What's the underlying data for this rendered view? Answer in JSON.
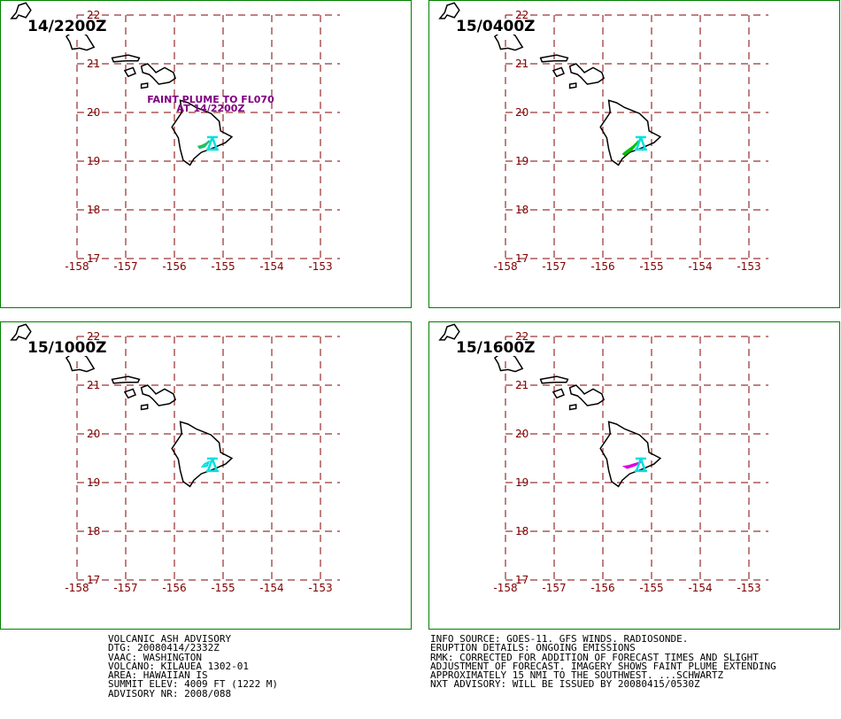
{
  "panels": [
    {
      "time": "14/2200Z",
      "annotation": [
        "FAINT PLUME TO FL070",
        "AT 14/2200Z"
      ],
      "plume": "cyan-green"
    },
    {
      "time": "15/0400Z",
      "annotation": [],
      "plume": "green"
    },
    {
      "time": "15/1000Z",
      "annotation": [],
      "plume": "cyan"
    },
    {
      "time": "15/1600Z",
      "annotation": [],
      "plume": "magenta"
    }
  ],
  "map": {
    "lon_ticks": [
      "-158",
      "-157",
      "-156",
      "-155",
      "-154",
      "-153"
    ],
    "lat_ticks": [
      "22",
      "21",
      "20",
      "19",
      "18",
      "17"
    ],
    "grid_color": "#800000",
    "coast_color": "#000000",
    "border_color": "#008000",
    "annotation_color": "#800080",
    "volcano_marker_color": "#00e0e0",
    "plume_colors": {
      "cyan-green": "#20c060",
      "green": "#00c000",
      "cyan": "#00e0e0",
      "magenta": "#e000e0"
    }
  },
  "advisory_left": [
    "VOLCANIC ASH ADVISORY",
    "DTG: 20080414/2332Z",
    "VAAC: WASHINGTON",
    "VOLCANO: KILAUEA 1302-01",
    "AREA: HAWAIIAN IS",
    "SUMMIT ELEV: 4009 FT (1222 M)",
    "ADVISORY NR: 2008/088"
  ],
  "advisory_right": [
    "INFO SOURCE: GOES-11. GFS WINDS. RADIOSONDE.",
    "ERUPTION DETAILS: ONGOING EMISSIONS",
    "RMK: CORRECTED FOR ADDITION OF FORECAST TIMES AND SLIGHT",
    "ADJUSTMENT OF FORECAST. IMAGERY SHOWS FAINT PLUME EXTENDING",
    "APPROXIMATELY 15 NMI TO THE SOUTHWEST. ...SCHWARTZ",
    "NXT ADVISORY: WILL BE ISSUED BY 20080415/0530Z"
  ]
}
